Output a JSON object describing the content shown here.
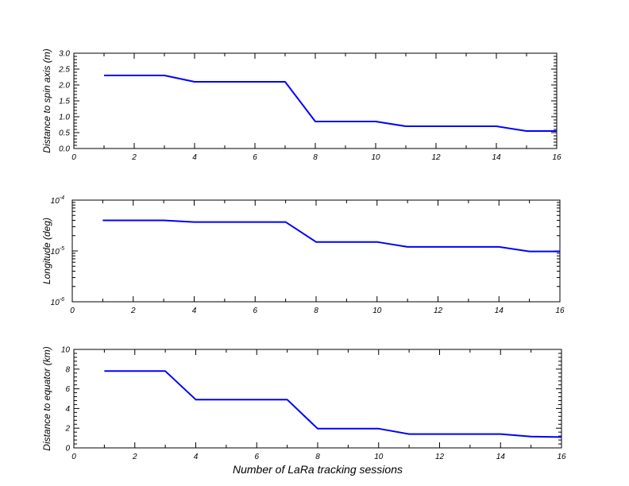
{
  "figure": {
    "xlabel": "Number of LaRa tracking sessions"
  },
  "chart_data": [
    {
      "type": "line",
      "ylabel": "Distance to spin axis (m)",
      "xlim": [
        0,
        16
      ],
      "ylim": [
        0,
        3
      ],
      "yscale": "linear",
      "x_ticks": [
        "0",
        "2",
        "4",
        "6",
        "8",
        "10",
        "12",
        "14",
        "16"
      ],
      "y_ticks": [
        {
          "value": 0,
          "label": "0.0"
        },
        {
          "value": 0.5,
          "label": "0.5"
        },
        {
          "value": 1,
          "label": "1.0"
        },
        {
          "value": 1.5,
          "label": "1.5"
        },
        {
          "value": 2,
          "label": "2.0"
        },
        {
          "value": 2.5,
          "label": "2.5"
        },
        {
          "value": 3,
          "label": "3.0"
        }
      ],
      "series": [
        {
          "color": "#0000ff",
          "x": [
            1,
            3,
            4,
            7,
            8,
            10,
            11,
            14,
            15,
            16
          ],
          "y": [
            2.3,
            2.3,
            2.1,
            2.1,
            0.85,
            0.85,
            0.7,
            0.7,
            0.55,
            0.55
          ]
        }
      ]
    },
    {
      "type": "line",
      "ylabel": "Longitude (deg)",
      "xlim": [
        0,
        16
      ],
      "ylim": [
        1e-06,
        0.0001
      ],
      "yscale": "log",
      "x_ticks": [
        "0",
        "2",
        "4",
        "6",
        "8",
        "10",
        "12",
        "14",
        "16"
      ],
      "y_ticks": [
        {
          "value": 1e-06,
          "base": "10",
          "exp": "-6"
        },
        {
          "value": 1e-05,
          "base": "10",
          "exp": "-5"
        },
        {
          "value": 0.0001,
          "base": "10",
          "exp": "-4"
        }
      ],
      "series": [
        {
          "color": "#0000ff",
          "x": [
            1,
            3,
            4,
            7,
            8,
            10,
            11,
            14,
            15,
            16
          ],
          "y": [
            4e-05,
            4e-05,
            3.7e-05,
            3.7e-05,
            1.5e-05,
            1.5e-05,
            1.2e-05,
            1.2e-05,
            9.8e-06,
            9.8e-06
          ]
        }
      ]
    },
    {
      "type": "line",
      "ylabel": "Distance to equator (km)",
      "xlim": [
        0,
        16
      ],
      "ylim": [
        0,
        10
      ],
      "yscale": "linear",
      "x_ticks": [
        "0",
        "2",
        "4",
        "6",
        "8",
        "10",
        "12",
        "14",
        "16"
      ],
      "y_ticks": [
        {
          "value": 0,
          "label": "0"
        },
        {
          "value": 2,
          "label": "2"
        },
        {
          "value": 4,
          "label": "4"
        },
        {
          "value": 6,
          "label": "6"
        },
        {
          "value": 8,
          "label": "8"
        },
        {
          "value": 10,
          "label": "10"
        }
      ],
      "series": [
        {
          "color": "#0000ff",
          "x": [
            1,
            3,
            4,
            7,
            8,
            10,
            11,
            14,
            15,
            16
          ],
          "y": [
            7.8,
            7.8,
            4.9,
            4.9,
            1.95,
            1.95,
            1.4,
            1.4,
            1.15,
            1.1
          ]
        }
      ]
    }
  ]
}
